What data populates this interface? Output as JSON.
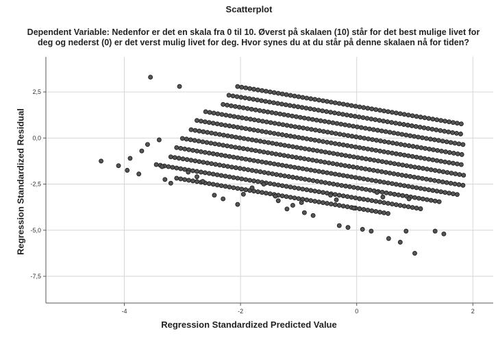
{
  "chart_data": {
    "type": "scatter",
    "title": "Scatterplot",
    "subtitle_lines": [
      "Dependent Variable: Nedenfor er det en skala fra 0 til 10. Øverst på skalaen (10) står for det best mulige livet for",
      "deg og nederst (0) er det verst mulig livet for deg.   Hvor synes du at du står på denne skalaen nå for tiden?"
    ],
    "xlabel": "Regression Standardized Predicted Value",
    "ylabel": "Regression Standardized Residual",
    "xlim": [
      -5.35,
      2.35
    ],
    "ylim": [
      -8.95,
      4.4
    ],
    "x_ticks": [
      -4,
      -2,
      0,
      2
    ],
    "x_tick_labels": [
      "-4",
      "-2",
      "0",
      "2"
    ],
    "y_ticks": [
      2.5,
      0.0,
      -2.5,
      -5.0,
      -7.5
    ],
    "y_tick_labels": [
      "2,5",
      "0,0",
      "-2,5",
      "-5,0",
      "-7,5"
    ],
    "grid": true,
    "marker_color": "#555555",
    "marker_edge_color": "#1e1e1e",
    "residual_bands": {
      "slope": -0.5263,
      "band_spacing": 0.5263,
      "point_spacing_x": 0.07,
      "bands": [
        {
          "level": 10,
          "x_range": [
            -2.05,
            1.85
          ]
        },
        {
          "level": 9,
          "x_range": [
            -2.2,
            1.85
          ]
        },
        {
          "level": 8,
          "x_range": [
            -2.3,
            1.85
          ]
        },
        {
          "level": 7,
          "x_range": [
            -2.6,
            1.85
          ]
        },
        {
          "level": 6,
          "x_range": [
            -2.75,
            1.85
          ]
        },
        {
          "level": 5,
          "x_range": [
            -2.85,
            1.85
          ]
        },
        {
          "level": 4,
          "x_range": [
            -3.0,
            1.85
          ]
        },
        {
          "level": 3,
          "x_range": [
            -3.1,
            1.75
          ]
        },
        {
          "level": 2,
          "x_range": [
            -3.2,
            1.45
          ]
        },
        {
          "level": 1,
          "x_range": [
            -3.45,
            1.15
          ]
        },
        {
          "level": 0,
          "x_range": [
            -3.1,
            0.6
          ]
        }
      ]
    },
    "scattered_points": [
      {
        "x": -4.4,
        "y": -1.25
      },
      {
        "x": -4.1,
        "y": -1.5
      },
      {
        "x": -3.95,
        "y": -1.75
      },
      {
        "x": -3.9,
        "y": -1.1
      },
      {
        "x": -3.75,
        "y": -1.95
      },
      {
        "x": -3.7,
        "y": -0.7
      },
      {
        "x": -3.6,
        "y": -0.35
      },
      {
        "x": -3.55,
        "y": 3.3
      },
      {
        "x": -3.4,
        "y": -0.1
      },
      {
        "x": -3.35,
        "y": -1.55
      },
      {
        "x": -3.3,
        "y": -2.25
      },
      {
        "x": -3.2,
        "y": -2.45
      },
      {
        "x": -3.05,
        "y": 2.8
      },
      {
        "x": -2.9,
        "y": -1.85
      },
      {
        "x": -2.75,
        "y": -2.1
      },
      {
        "x": -2.65,
        "y": -2.35
      },
      {
        "x": -2.45,
        "y": -3.1
      },
      {
        "x": -2.3,
        "y": -3.3
      },
      {
        "x": -2.05,
        "y": -3.6
      },
      {
        "x": -1.95,
        "y": -3.05
      },
      {
        "x": -1.8,
        "y": -2.7
      },
      {
        "x": -1.6,
        "y": -2.5
      },
      {
        "x": -1.4,
        "y": -3.15
      },
      {
        "x": -1.35,
        "y": -3.4
      },
      {
        "x": -1.2,
        "y": -3.85
      },
      {
        "x": -1.1,
        "y": -3.65
      },
      {
        "x": -0.95,
        "y": -3.5
      },
      {
        "x": -0.9,
        "y": -4.05
      },
      {
        "x": -0.75,
        "y": -4.2
      },
      {
        "x": -0.45,
        "y": -3.1
      },
      {
        "x": -0.35,
        "y": -3.35
      },
      {
        "x": -0.3,
        "y": -4.75
      },
      {
        "x": -0.15,
        "y": -4.85
      },
      {
        "x": -0.05,
        "y": -3.8
      },
      {
        "x": 0.05,
        "y": -3.3
      },
      {
        "x": 0.1,
        "y": -4.95
      },
      {
        "x": 0.25,
        "y": -5.05
      },
      {
        "x": 0.35,
        "y": -2.95
      },
      {
        "x": 0.45,
        "y": -3.2
      },
      {
        "x": 0.55,
        "y": -5.45
      },
      {
        "x": 0.65,
        "y": -3.05
      },
      {
        "x": 0.75,
        "y": -5.65
      },
      {
        "x": 0.85,
        "y": -5.05
      },
      {
        "x": 0.9,
        "y": -3.3
      },
      {
        "x": 1.0,
        "y": -6.25
      },
      {
        "x": 1.35,
        "y": -5.05
      },
      {
        "x": 1.5,
        "y": -5.2
      }
    ]
  }
}
